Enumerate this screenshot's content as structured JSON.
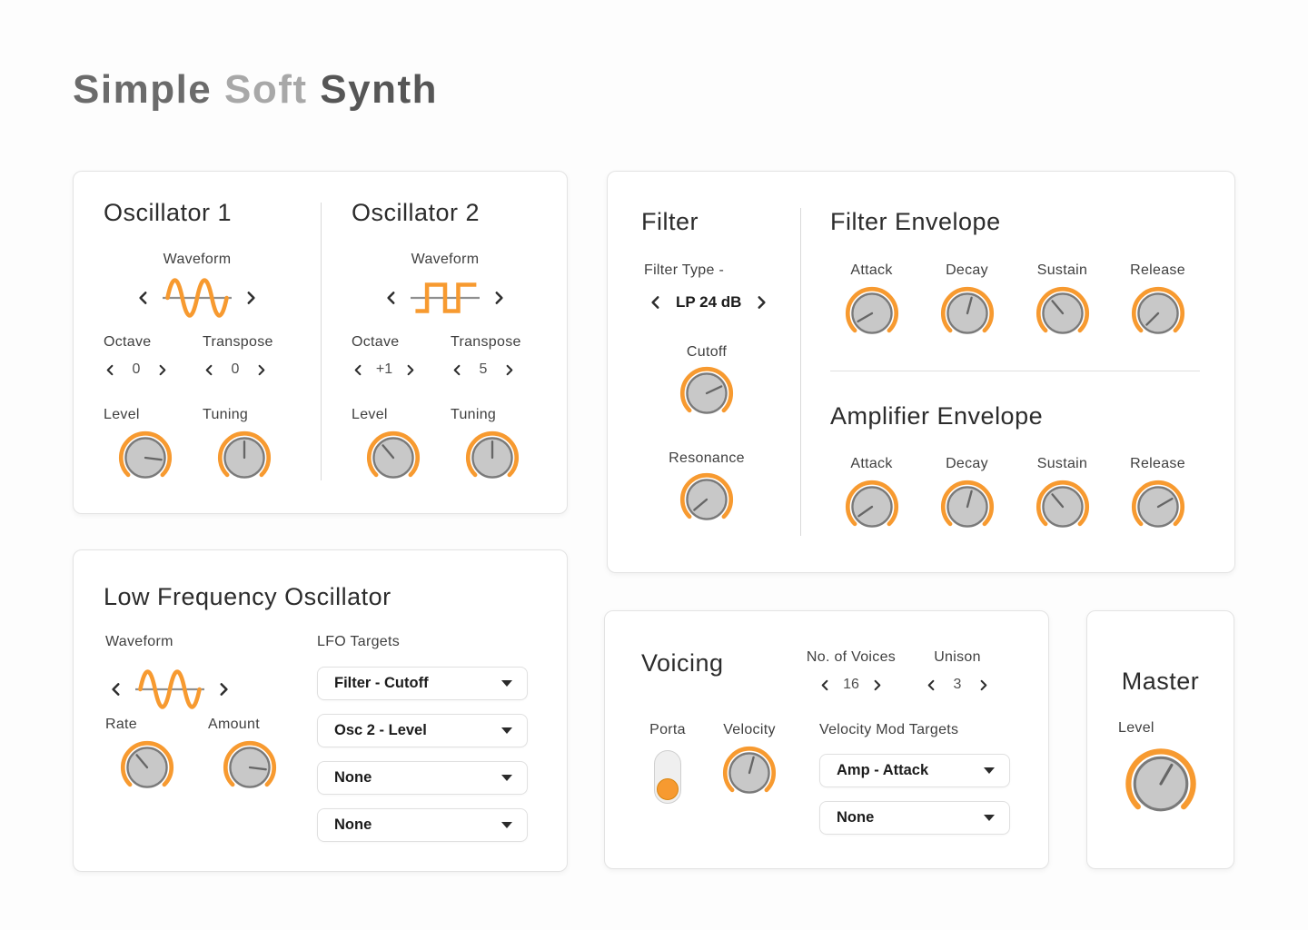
{
  "accent": "#F79A30",
  "header": {
    "word1": "Simple",
    "word2": "Soft",
    "word3": "Synth"
  },
  "osc1": {
    "title": "Oscillator 1",
    "waveform_label": "Waveform",
    "waveform": "sine",
    "octave_label": "Octave",
    "octave_value": "0",
    "transpose_label": "Transpose",
    "transpose_value": "0",
    "level_label": "Level",
    "level_angle": 97,
    "tuning_label": "Tuning",
    "tuning_angle": 0
  },
  "osc2": {
    "title": "Oscillator 2",
    "waveform_label": "Waveform",
    "waveform": "square",
    "octave_label": "Octave",
    "octave_value": "+1",
    "transpose_label": "Transpose",
    "transpose_value": "5",
    "level_label": "Level",
    "level_angle": -40,
    "tuning_label": "Tuning",
    "tuning_angle": 0
  },
  "filter": {
    "title": "Filter",
    "type_label": "Filter Type -",
    "type_value": "LP 24 dB",
    "cutoff_label": "Cutoff",
    "cutoff_angle": 65,
    "resonance_label": "Resonance",
    "resonance_angle": -130
  },
  "filter_envelope": {
    "title": "Filter Envelope",
    "knobs": [
      {
        "label": "Attack",
        "angle": -120
      },
      {
        "label": "Decay",
        "angle": 15
      },
      {
        "label": "Sustain",
        "angle": -40
      },
      {
        "label": "Release",
        "angle": -135
      }
    ]
  },
  "amp_envelope": {
    "title": "Amplifier Envelope",
    "knobs": [
      {
        "label": "Attack",
        "angle": -125
      },
      {
        "label": "Decay",
        "angle": 15
      },
      {
        "label": "Sustain",
        "angle": -40
      },
      {
        "label": "Release",
        "angle": 60
      }
    ]
  },
  "lfo": {
    "title": "Low Frequency Oscillator",
    "waveform_label": "Waveform",
    "waveform": "sine",
    "rate_label": "Rate",
    "rate_angle": -40,
    "amount_label": "Amount",
    "amount_angle": 97,
    "targets_label": "LFO Targets",
    "targets": [
      "Filter - Cutoff",
      "Osc 2 - Level",
      "None",
      "None"
    ]
  },
  "voicing": {
    "title": "Voicing",
    "voices_label": "No. of Voices",
    "voices_value": "16",
    "unison_label": "Unison",
    "unison_value": "3",
    "porta_label": "Porta",
    "porta_state": "bottom",
    "velocity_label": "Velocity",
    "velocity_angle": 15,
    "mod_targets_label": "Velocity Mod Targets",
    "mod_targets": [
      "Amp - Attack",
      "None"
    ]
  },
  "master": {
    "title": "Master",
    "level_label": "Level",
    "level_angle": 30
  }
}
